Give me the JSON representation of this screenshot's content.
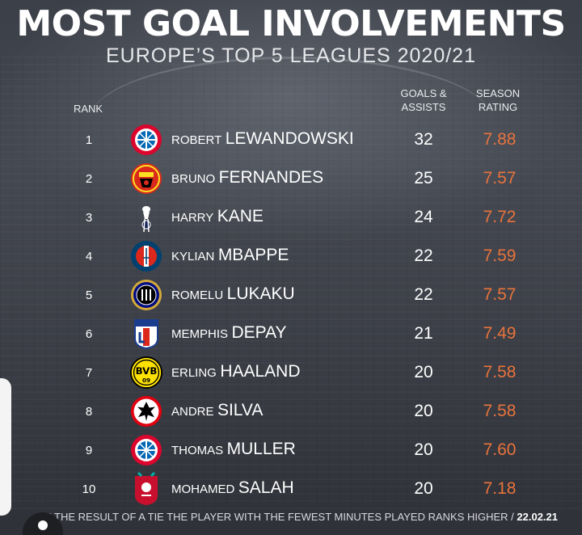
{
  "title": "MOST GOAL INVOLVEMENTS",
  "subtitle": "EUROPE’S TOP 5 LEAGUES 2020/21",
  "headers": {
    "rank": "RANK",
    "goals_assists_line1": "GOALS &",
    "goals_assists_line2": "ASSISTS",
    "season_rating_line1": "SEASON",
    "season_rating_line2": "RATING"
  },
  "colors": {
    "rating_accent": "#e9733c",
    "background": "#3a3d44",
    "text": "#ffffff"
  },
  "players": [
    {
      "rank": "1",
      "first": "ROBERT",
      "last": "LEWANDOWSKI",
      "ga": "32",
      "rating": "7.88",
      "club_icon": "bayern-munich-crest-icon"
    },
    {
      "rank": "2",
      "first": "BRUNO",
      "last": "FERNANDES",
      "ga": "25",
      "rating": "7.57",
      "club_icon": "manchester-united-crest-icon"
    },
    {
      "rank": "3",
      "first": "HARRY",
      "last": "KANE",
      "ga": "24",
      "rating": "7.72",
      "club_icon": "tottenham-crest-icon"
    },
    {
      "rank": "4",
      "first": "KYLIAN",
      "last": "MBAPPE",
      "ga": "22",
      "rating": "7.59",
      "club_icon": "psg-crest-icon"
    },
    {
      "rank": "5",
      "first": "ROMELU",
      "last": "LUKAKU",
      "ga": "22",
      "rating": "7.57",
      "club_icon": "inter-crest-icon"
    },
    {
      "rank": "6",
      "first": "MEMPHIS",
      "last": "DEPAY",
      "ga": "21",
      "rating": "7.49",
      "club_icon": "lyon-crest-icon"
    },
    {
      "rank": "7",
      "first": "ERLING",
      "last": "HAALAND",
      "ga": "20",
      "rating": "7.58",
      "club_icon": "dortmund-crest-icon"
    },
    {
      "rank": "8",
      "first": "ANDRE",
      "last": "SILVA",
      "ga": "20",
      "rating": "7.58",
      "club_icon": "eintracht-frankfurt-crest-icon"
    },
    {
      "rank": "9",
      "first": "THOMAS",
      "last": "MULLER",
      "ga": "20",
      "rating": "7.60",
      "club_icon": "bayern-munich-crest-icon"
    },
    {
      "rank": "10",
      "first": "MOHAMED",
      "last": "SALAH",
      "ga": "20",
      "rating": "7.18",
      "club_icon": "liverpool-crest-icon"
    }
  ],
  "footnote": {
    "text": "IN THE RESULT OF A TIE THE PLAYER WITH THE FEWEST MINUTES PLAYED RANKS HIGHER / ",
    "date": "22.02.21"
  }
}
